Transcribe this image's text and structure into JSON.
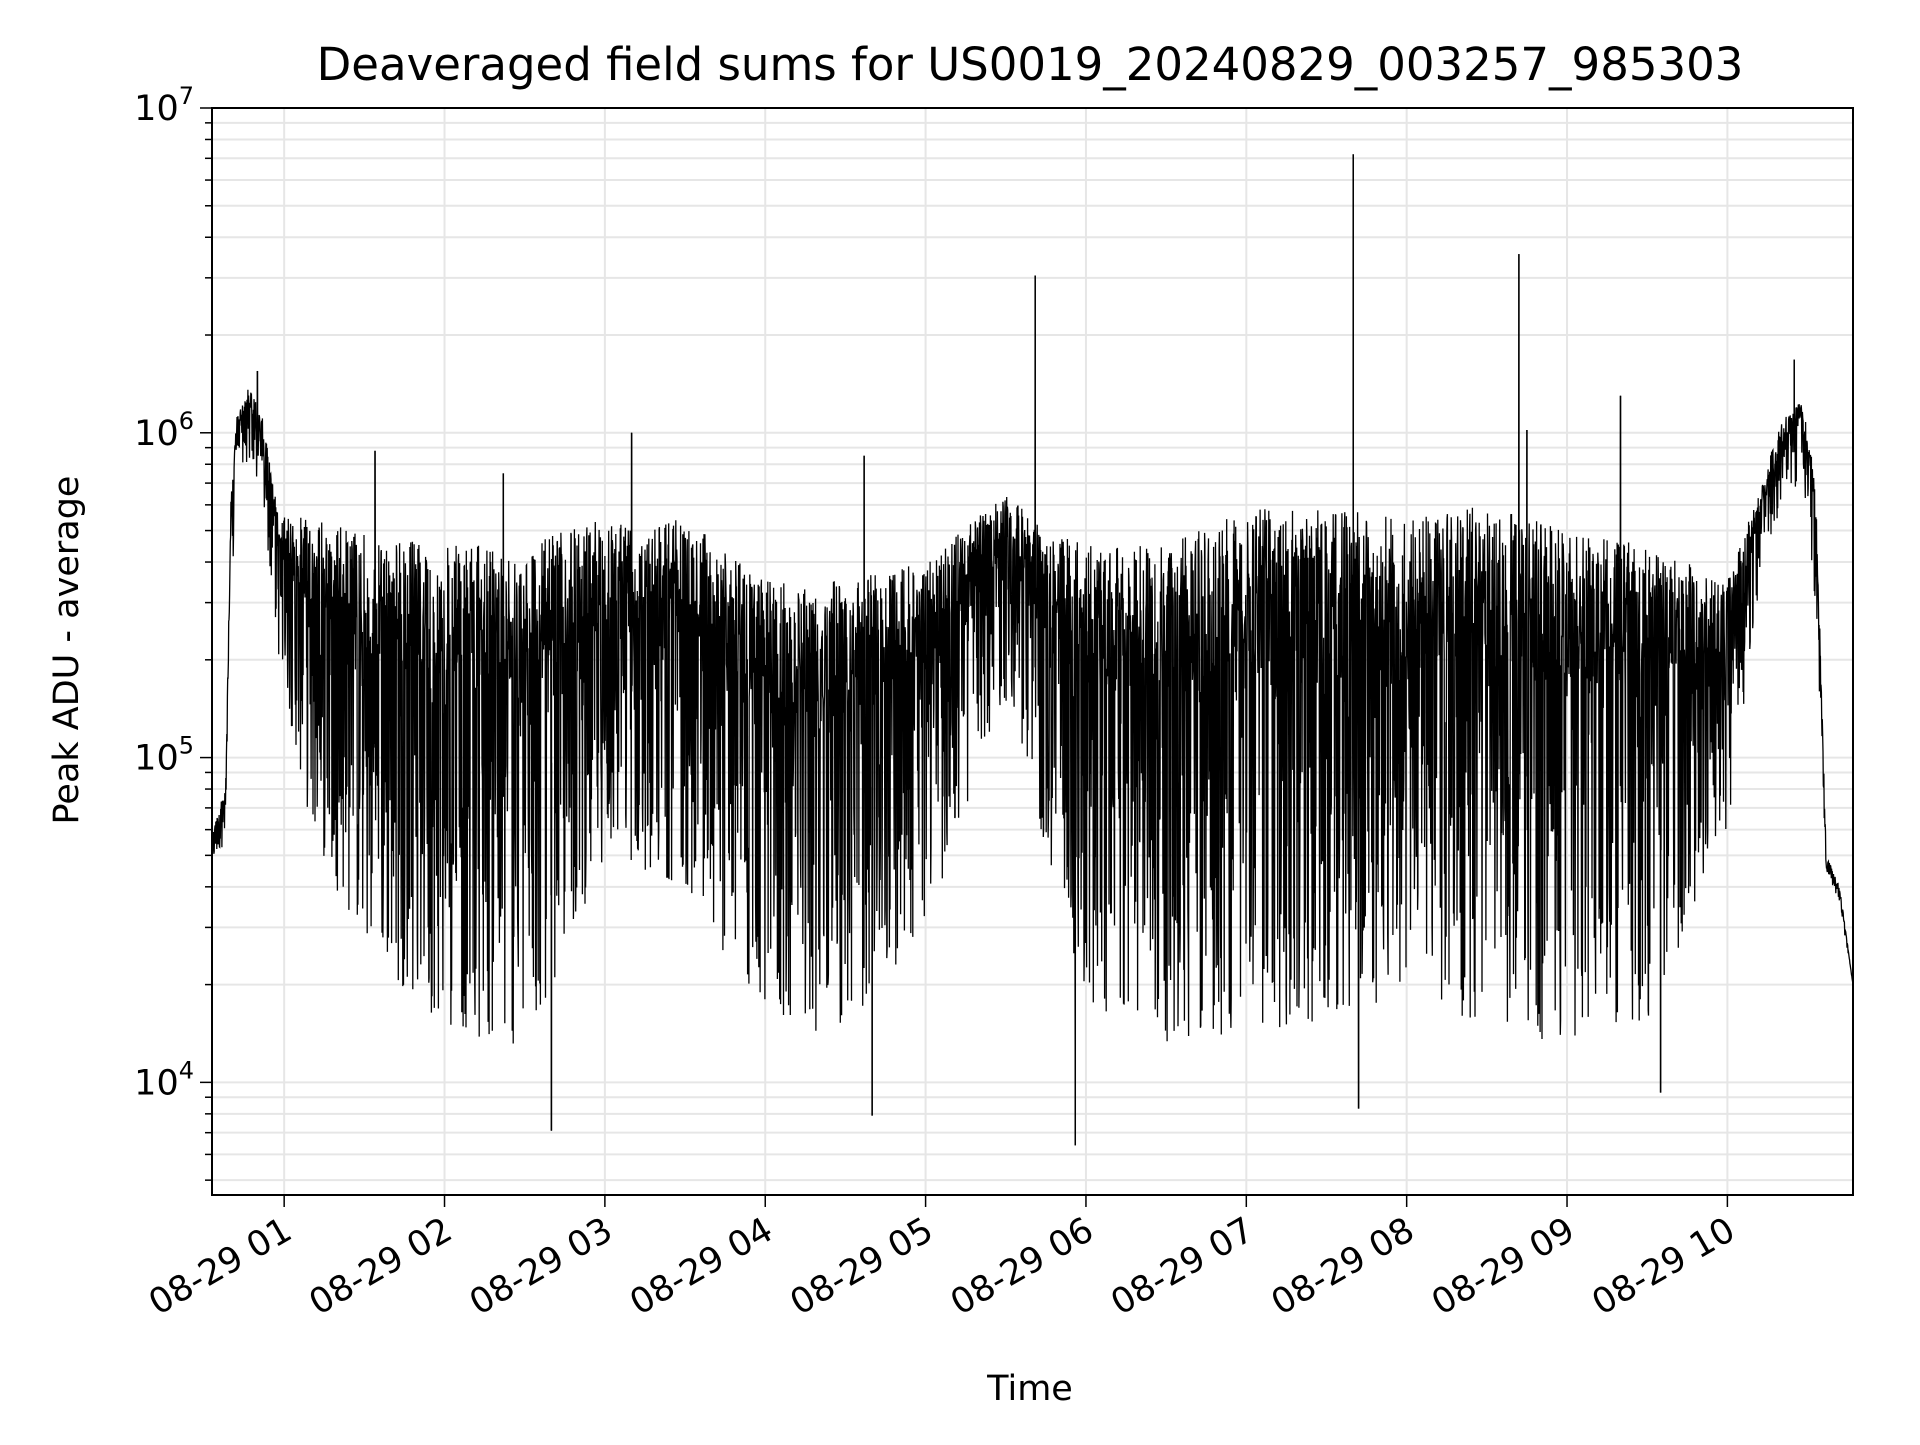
{
  "chart_data": {
    "type": "line",
    "title": "Deaveraged field sums for US0019_20240829_003257_985303",
    "xlabel": "Time",
    "ylabel": "Peak ADU - average",
    "yscale": "log",
    "ylim": [
      4500,
      10000000
    ],
    "xlim": [
      "2024-08-29 00:33",
      "2024-08-29 10:47"
    ],
    "grid": true,
    "x_ticks": [
      {
        "value": "2024-08-29 01:00",
        "label": "08-29 01"
      },
      {
        "value": "2024-08-29 02:00",
        "label": "08-29 02"
      },
      {
        "value": "2024-08-29 03:00",
        "label": "08-29 03"
      },
      {
        "value": "2024-08-29 04:00",
        "label": "08-29 04"
      },
      {
        "value": "2024-08-29 05:00",
        "label": "08-29 05"
      },
      {
        "value": "2024-08-29 06:00",
        "label": "08-29 06"
      },
      {
        "value": "2024-08-29 07:00",
        "label": "08-29 07"
      },
      {
        "value": "2024-08-29 08:00",
        "label": "08-29 08"
      },
      {
        "value": "2024-08-29 09:00",
        "label": "08-29 09"
      },
      {
        "value": "2024-08-29 10:00",
        "label": "08-29 10"
      }
    ],
    "y_ticks": [
      {
        "value": 10000,
        "base": "10",
        "exp": "4"
      },
      {
        "value": 100000,
        "base": "10",
        "exp": "5"
      },
      {
        "value": 1000000,
        "base": "10",
        "exp": "6"
      },
      {
        "value": 10000000,
        "base": "10",
        "exp": "7"
      }
    ],
    "line_color": "#000000",
    "grid_color": "#e6e6e6",
    "series": [
      {
        "envelope": [
          {
            "t": "2024-08-29 00:33",
            "hi": 60000,
            "lo": 47000
          },
          {
            "t": "2024-08-29 00:38",
            "hi": 80000,
            "lo": 55000
          },
          {
            "t": "2024-08-29 00:40",
            "hi": 600000,
            "lo": 200000
          },
          {
            "t": "2024-08-29 00:42",
            "hi": 1100000,
            "lo": 800000
          },
          {
            "t": "2024-08-29 00:47",
            "hi": 1400000,
            "lo": 800000
          },
          {
            "t": "2024-08-29 00:52",
            "hi": 1100000,
            "lo": 600000
          },
          {
            "t": "2024-08-29 00:58",
            "hi": 550000,
            "lo": 200000
          },
          {
            "t": "2024-08-29 01:10",
            "hi": 550000,
            "lo": 60000
          },
          {
            "t": "2024-08-29 01:30",
            "hi": 500000,
            "lo": 25000
          },
          {
            "t": "2024-08-29 02:00",
            "hi": 450000,
            "lo": 15000
          },
          {
            "t": "2024-08-29 02:30",
            "hi": 450000,
            "lo": 12000
          },
          {
            "t": "2024-08-29 03:00",
            "hi": 550000,
            "lo": 50000
          },
          {
            "t": "2024-08-29 03:30",
            "hi": 550000,
            "lo": 40000
          },
          {
            "t": "2024-08-29 04:00",
            "hi": 350000,
            "lo": 15000
          },
          {
            "t": "2024-08-29 04:30",
            "hi": 350000,
            "lo": 14000
          },
          {
            "t": "2024-08-29 05:00",
            "hi": 400000,
            "lo": 30000
          },
          {
            "t": "2024-08-29 05:30",
            "hi": 650000,
            "lo": 150000
          },
          {
            "t": "2024-08-29 05:45",
            "hi": 500000,
            "lo": 50000
          },
          {
            "t": "2024-08-29 06:00",
            "hi": 450000,
            "lo": 15000
          },
          {
            "t": "2024-08-29 06:30",
            "hi": 450000,
            "lo": 13000
          },
          {
            "t": "2024-08-29 07:00",
            "hi": 600000,
            "lo": 14000
          },
          {
            "t": "2024-08-29 07:30",
            "hi": 600000,
            "lo": 15000
          },
          {
            "t": "2024-08-29 08:00",
            "hi": 550000,
            "lo": 18000
          },
          {
            "t": "2024-08-29 08:30",
            "hi": 600000,
            "lo": 15000
          },
          {
            "t": "2024-08-29 09:00",
            "hi": 500000,
            "lo": 13000
          },
          {
            "t": "2024-08-29 09:30",
            "hi": 450000,
            "lo": 15000
          },
          {
            "t": "2024-08-29 10:00",
            "hi": 350000,
            "lo": 60000
          },
          {
            "t": "2024-08-29 10:10",
            "hi": 600000,
            "lo": 250000
          },
          {
            "t": "2024-08-29 10:20",
            "hi": 1100000,
            "lo": 600000
          },
          {
            "t": "2024-08-29 10:28",
            "hi": 1300000,
            "lo": 700000
          },
          {
            "t": "2024-08-29 10:33",
            "hi": 700000,
            "lo": 300000
          },
          {
            "t": "2024-08-29 10:37",
            "hi": 50000,
            "lo": 45000
          },
          {
            "t": "2024-08-29 10:42",
            "hi": 40000,
            "lo": 35000
          },
          {
            "t": "2024-08-29 10:47",
            "hi": 20000,
            "lo": 20000
          }
        ],
        "spikes": [
          {
            "t": "2024-08-29 00:50",
            "y": 1550000
          },
          {
            "t": "2024-08-29 01:34",
            "y": 880000
          },
          {
            "t": "2024-08-29 02:22",
            "y": 750000
          },
          {
            "t": "2024-08-29 02:40",
            "y": 7100
          },
          {
            "t": "2024-08-29 03:10",
            "y": 1000000
          },
          {
            "t": "2024-08-29 04:37",
            "y": 850000
          },
          {
            "t": "2024-08-29 04:40",
            "y": 7900
          },
          {
            "t": "2024-08-29 05:41",
            "y": 3050000
          },
          {
            "t": "2024-08-29 05:56",
            "y": 6400
          },
          {
            "t": "2024-08-29 07:40",
            "y": 7200000
          },
          {
            "t": "2024-08-29 07:42",
            "y": 8300
          },
          {
            "t": "2024-08-29 08:42",
            "y": 3550000
          },
          {
            "t": "2024-08-29 08:45",
            "y": 1020000
          },
          {
            "t": "2024-08-29 09:20",
            "y": 1300000
          },
          {
            "t": "2024-08-29 09:35",
            "y": 9300
          },
          {
            "t": "2024-08-29 10:25",
            "y": 1680000
          }
        ]
      }
    ]
  }
}
